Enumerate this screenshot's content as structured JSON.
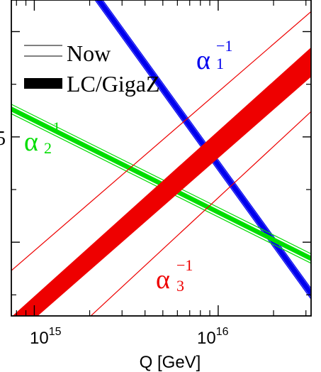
{
  "chart_data": {
    "type": "line",
    "title": "",
    "xlabel": "Q [GeV]",
    "ylabel": "",
    "xscale": "log",
    "xlim": [
      750000000000000.0,
      3.2e+16
    ],
    "ylim": [
      23.3,
      26.3
    ],
    "x_tick_labels": [
      {
        "value": 1000000000000000.0,
        "base": "10",
        "exp": "15"
      },
      {
        "value": 1e+16,
        "base": "10",
        "exp": "16"
      }
    ],
    "y_tick_label_partial": "5",
    "grid": false,
    "legend": {
      "placement": "top-left",
      "entries": [
        {
          "label": "Now",
          "style": "thin-band"
        },
        {
          "label": "LC/GigaZ",
          "style": "thick-band"
        }
      ]
    },
    "series": [
      {
        "id": "alpha1",
        "label_base": "α",
        "label_sup": "−1",
        "label_sub": "1",
        "color": "#0000ee",
        "x": [
          2000000000000000.0,
          3.2e+16
        ],
        "now_lower": [
          26.37,
          23.46
        ],
        "now_upper": [
          26.47,
          23.56
        ],
        "lc_lower": [
          26.38,
          23.47
        ],
        "lc_upper": [
          26.46,
          23.55
        ]
      },
      {
        "id": "alpha2",
        "label_base": "α",
        "label_sub": "2",
        "label_sup": "−1",
        "color": "#00dd00",
        "x": [
          750000000000000.0,
          3.2e+16
        ],
        "now_lower": [
          25.22,
          23.8
        ],
        "now_upper": [
          25.31,
          23.89
        ],
        "lc_lower": [
          25.24,
          23.82
        ],
        "lc_upper": [
          25.29,
          23.87
        ]
      },
      {
        "id": "alpha3",
        "label_base": "α",
        "label_sub": "3",
        "label_sup": "−1",
        "color": "#ee0000",
        "x": [
          750000000000000.0,
          3.2e+16
        ],
        "now_lower": [
          22.6,
          25.24
        ],
        "now_upper": [
          23.73,
          26.19
        ],
        "lc_lower": [
          23.08,
          25.57
        ],
        "lc_upper": [
          23.29,
          25.85
        ]
      }
    ]
  }
}
